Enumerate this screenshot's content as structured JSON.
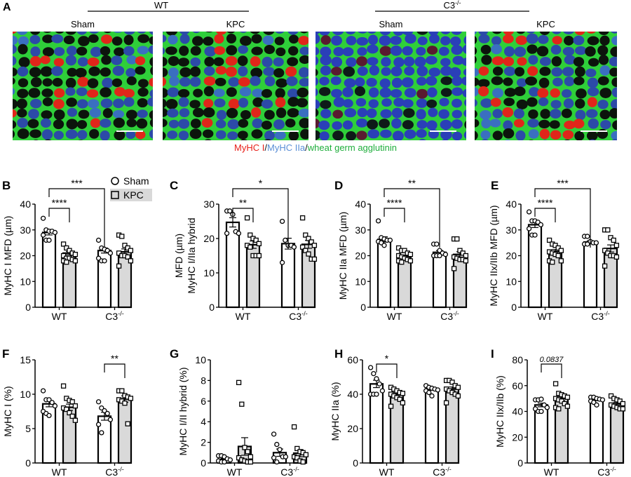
{
  "panel_a": {
    "letter": "A",
    "groups": [
      {
        "label": "WT",
        "sup": ""
      },
      {
        "label": "C3",
        "sup": "-/-"
      }
    ],
    "images": [
      {
        "label": "Sham",
        "group": "WT",
        "style": "mixed"
      },
      {
        "label": "KPC",
        "group": "WT",
        "style": "mixed"
      },
      {
        "label": "Sham",
        "group": "C3-/-",
        "style": "blue"
      },
      {
        "label": "KPC",
        "group": "C3-/-",
        "style": "mixed"
      }
    ],
    "caption": [
      {
        "text": "MyHC I",
        "color": "#e8201a"
      },
      {
        "text": "/",
        "color": "#111111"
      },
      {
        "text": "MyHC IIa",
        "color": "#5b8fd6"
      },
      {
        "text": "/",
        "color": "#111111"
      },
      {
        "text": "wheat germ agglutinin",
        "color": "#1fae3c"
      }
    ],
    "colors": {
      "membrane": "#2fcf3a",
      "type1": "#e0261a",
      "type2a": "#3a55c8",
      "background": "#0c140c"
    }
  },
  "legend": [
    {
      "label": "Sham",
      "marker": "circle",
      "fill": "#ffffff"
    },
    {
      "label": "KPC",
      "marker": "square",
      "fill": "#d9d9d9"
    }
  ],
  "chart_data": [
    {
      "panel": "B",
      "type": "bar",
      "ylabel": [
        "MyHC I MFD (µm)"
      ],
      "ylim": [
        0,
        40
      ],
      "yticks": [
        "0",
        "10",
        "20",
        "30",
        "40"
      ],
      "categories": [
        {
          "label": "WT",
          "sup": ""
        },
        {
          "label": "C3",
          "sup": "-/-"
        }
      ],
      "series": [
        {
          "name": "Sham",
          "values": [
            29,
            22
          ],
          "points": [
            [
              34.5,
              30,
              29.5,
              29.5,
              29,
              28,
              26,
              26
            ],
            [
              26,
              23,
              22.5,
              22,
              21,
              19,
              18,
              18
            ]
          ]
        },
        {
          "name": "KPC",
          "values": [
            21,
            21.5
          ],
          "points": [
            [
              24.5,
              23,
              22,
              21,
              20.5,
              20,
              19,
              19,
              18.5,
              18,
              18,
              17.5
            ],
            [
              28,
              27.5,
              24,
              23,
              22,
              21,
              20,
              20,
              19.5,
              18,
              16
            ]
          ]
        }
      ],
      "significance": [
        {
          "from": "WT-Sham",
          "to": "WT-KPC",
          "label": "****"
        },
        {
          "from": "WT-Sham",
          "to": "C3-Sham",
          "label": "***"
        }
      ]
    },
    {
      "panel": "C",
      "type": "bar",
      "ylabel": [
        "MyHC I/IIa hybrid",
        "MFD (µm)"
      ],
      "ylim": [
        0,
        30
      ],
      "yticks": [
        "0",
        "10",
        "20",
        "30"
      ],
      "categories": [
        {
          "label": "WT",
          "sup": ""
        },
        {
          "label": "C3",
          "sup": "-/-"
        }
      ],
      "series": [
        {
          "name": "Sham",
          "values": [
            24.7,
            18.5
          ],
          "points": [
            [
              28,
              28,
              27,
              22,
              21.5,
              21.5
            ],
            [
              25,
              19.5,
              18,
              18,
              17.5,
              13
            ]
          ]
        },
        {
          "name": "KPC",
          "values": [
            18.2,
            18.3
          ],
          "points": [
            [
              26,
              21,
              20,
              19.5,
              18.5,
              18,
              17.5,
              15,
              15,
              15
            ],
            [
              26,
              21,
              20,
              19,
              18,
              17.5,
              16.5,
              15.5,
              14,
              14
            ]
          ]
        }
      ],
      "significance": [
        {
          "from": "WT-Sham",
          "to": "WT-KPC",
          "label": "**"
        },
        {
          "from": "WT-Sham",
          "to": "C3-Sham",
          "label": "*"
        }
      ]
    },
    {
      "panel": "D",
      "type": "bar",
      "ylabel": [
        "MyHC IIa MFD (µm)"
      ],
      "ylim": [
        0,
        40
      ],
      "yticks": [
        "0",
        "10",
        "20",
        "30",
        "40"
      ],
      "categories": [
        {
          "label": "WT",
          "sup": ""
        },
        {
          "label": "C3",
          "sup": "-/-"
        }
      ],
      "series": [
        {
          "name": "Sham",
          "values": [
            26.3,
            21.3
          ],
          "points": [
            [
              33.5,
              27,
              26.5,
              26,
              26,
              25.5,
              25,
              24
            ],
            [
              24.5,
              24.5,
              22,
              21,
              20.5,
              20,
              20,
              20
            ]
          ]
        },
        {
          "name": "KPC",
          "values": [
            19.7,
            20.5
          ],
          "points": [
            [
              23,
              22,
              22,
              21,
              20.5,
              20,
              19.5,
              19,
              18.5,
              18,
              18,
              17.5
            ],
            [
              26.5,
              26.5,
              22,
              21,
              20,
              19.5,
              19,
              18.5,
              18.5,
              18,
              15
            ]
          ]
        }
      ],
      "significance": [
        {
          "from": "WT-Sham",
          "to": "WT-KPC",
          "label": "****"
        },
        {
          "from": "WT-Sham",
          "to": "C3-Sham",
          "label": "**"
        }
      ]
    },
    {
      "panel": "E",
      "type": "bar",
      "ylabel": [
        "MyHC IIx/IIb MFD (µm)"
      ],
      "ylim": [
        0,
        40
      ],
      "yticks": [
        "0",
        "10",
        "20",
        "30",
        "40"
      ],
      "categories": [
        {
          "label": "WT",
          "sup": ""
        },
        {
          "label": "C3",
          "sup": "-/-"
        }
      ],
      "series": [
        {
          "name": "Sham",
          "values": [
            32,
            25.3
          ],
          "points": [
            [
              37,
              33.5,
              33.5,
              33,
              32,
              30.5,
              28,
              28
            ],
            [
              27.5,
              27.5,
              25.5,
              25,
              25,
              24.5,
              24.5
            ]
          ]
        },
        {
          "name": "KPC",
          "values": [
            21.6,
            22.8
          ],
          "points": [
            [
              26,
              24.5,
              24,
              23,
              22,
              21.5,
              21,
              20.5,
              20,
              18,
              18,
              17.5
            ],
            [
              30,
              30,
              27,
              26,
              24,
              22,
              21,
              20,
              20,
              19.5,
              16
            ]
          ]
        }
      ],
      "significance": [
        {
          "from": "WT-Sham",
          "to": "WT-KPC",
          "label": "****"
        },
        {
          "from": "WT-Sham",
          "to": "C3-Sham",
          "label": "***"
        }
      ]
    },
    {
      "panel": "F",
      "type": "bar",
      "ylabel": [
        "MyHC I (%)"
      ],
      "ylim": [
        0,
        15
      ],
      "yticks": [
        "0",
        "5",
        "10",
        "15"
      ],
      "categories": [
        {
          "label": "WT",
          "sup": ""
        },
        {
          "label": "C3",
          "sup": "-/-"
        }
      ],
      "series": [
        {
          "name": "Sham",
          "values": [
            8.6,
            6.8
          ],
          "points": [
            [
              10.5,
              9.2,
              9.2,
              8.8,
              8.3,
              7.5,
              7.2,
              6.9
            ],
            [
              8.9,
              8.0,
              7.6,
              7.2,
              6.3,
              5.6,
              4.4
            ]
          ]
        },
        {
          "name": "KPC",
          "values": [
            8.1,
            9.3
          ],
          "points": [
            [
              11.2,
              9.4,
              9.1,
              8.9,
              8.3,
              8.0,
              7.8,
              7.3,
              6.8,
              6.2
            ],
            [
              10.5,
              10.5,
              9.8,
              9.6,
              9.4,
              9.2,
              9.0,
              8.7,
              5.7
            ]
          ]
        }
      ],
      "significance": [
        {
          "from": "C3-Sham",
          "to": "C3-KPC",
          "label": "**"
        }
      ]
    },
    {
      "panel": "G",
      "type": "bar",
      "ylabel": [
        "MyHC I/II hybrid (%)"
      ],
      "ylim": [
        0,
        10
      ],
      "yticks": [
        "0",
        "2",
        "4",
        "6",
        "8",
        "10"
      ],
      "categories": [
        {
          "label": "WT",
          "sup": ""
        },
        {
          "label": "C3",
          "sup": "-/-"
        }
      ],
      "series": [
        {
          "name": "Sham",
          "values": [
            0.35,
            1.0
          ],
          "points": [
            [
              0.7,
              0.7,
              0.6,
              0.4,
              0.3,
              0.2,
              0.1,
              0.1
            ],
            [
              2.8,
              1.8,
              1.3,
              0.6,
              0.6,
              0.5,
              0.1
            ]
          ]
        },
        {
          "name": "KPC",
          "values": [
            1.6,
            0.95
          ],
          "points": [
            [
              7.8,
              5.7,
              1.5,
              1.1,
              0.6,
              0.5,
              0.3,
              0.2,
              0.1,
              0.1
            ],
            [
              3.5,
              1.4,
              1.1,
              1.0,
              0.8,
              0.6,
              0.5,
              0.2,
              0.1
            ]
          ]
        }
      ],
      "significance": []
    },
    {
      "panel": "H",
      "type": "bar",
      "ylabel": [
        "MyHC IIa (%)"
      ],
      "ylim": [
        0,
        60
      ],
      "yticks": [
        "0",
        "20",
        "40",
        "60"
      ],
      "categories": [
        {
          "label": "WT",
          "sup": ""
        },
        {
          "label": "C3",
          "sup": "-/-"
        }
      ],
      "series": [
        {
          "name": "Sham",
          "values": [
            46,
            43
          ],
          "points": [
            [
              55.5,
              52,
              49,
              46,
              42,
              40,
              40,
              40
            ],
            [
              45,
              44,
              43.5,
              43,
              42.5,
              42,
              41,
              39
            ]
          ]
        },
        {
          "name": "KPC",
          "values": [
            40,
            43
          ],
          "points": [
            [
              44,
              43,
              42,
              41,
              40.5,
              40,
              39,
              38,
              37,
              35,
              33
            ],
            [
              48,
              48,
              47,
              45,
              44,
              43,
              42,
              41,
              40,
              39,
              35
            ]
          ]
        }
      ],
      "significance": [
        {
          "from": "WT-Sham",
          "to": "WT-KPC",
          "label": "*"
        }
      ]
    },
    {
      "panel": "I",
      "type": "bar",
      "ylabel": [
        "MyHC IIx/IIb (%)"
      ],
      "ylim": [
        0,
        80
      ],
      "yticks": [
        "0",
        "20",
        "40",
        "60",
        "80"
      ],
      "categories": [
        {
          "label": "WT",
          "sup": ""
        },
        {
          "label": "C3",
          "sup": "-/-"
        }
      ],
      "series": [
        {
          "name": "Sham",
          "values": [
            45,
            49
          ],
          "points": [
            [
              49,
              49,
              49.5,
              45,
              43,
              42,
              40,
              40
            ],
            [
              51,
              51,
              50,
              49.5,
              49,
              48,
              47,
              45
            ]
          ]
        },
        {
          "name": "KPC",
          "values": [
            50,
            46
          ],
          "points": [
            [
              61.5,
              54,
              53,
              52,
              51,
              50,
              49,
              48,
              46,
              44,
              43,
              42
            ],
            [
              52,
              50,
              49,
              48,
              46,
              45,
              44,
              43,
              42,
              42
            ]
          ]
        }
      ],
      "significance": [
        {
          "from": "WT-Sham",
          "to": "WT-KPC",
          "label": "0.0837",
          "italic": true
        }
      ]
    }
  ]
}
